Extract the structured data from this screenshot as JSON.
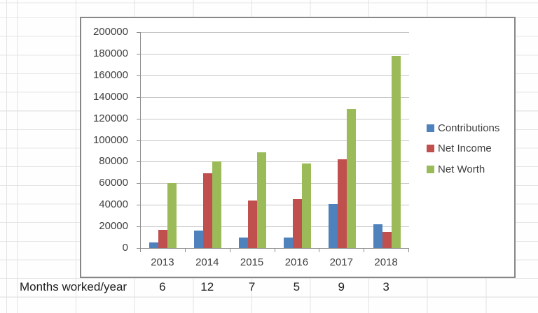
{
  "months_row": {
    "label": "Months worked/year",
    "values": [
      "6",
      "12",
      "7",
      "5",
      "9",
      "3"
    ]
  },
  "chart_data": {
    "type": "bar",
    "title": "",
    "xlabel": "",
    "ylabel": "",
    "categories": [
      "2013",
      "2014",
      "2015",
      "2016",
      "2017",
      "2018"
    ],
    "series": [
      {
        "name": "Contributions",
        "color": "#4F81BD",
        "values": [
          5000,
          16000,
          10000,
          10000,
          41000,
          22000
        ]
      },
      {
        "name": "Net Income",
        "color": "#C0504D",
        "values": [
          17000,
          69000,
          44000,
          45000,
          82500,
          15000
        ]
      },
      {
        "name": "Net Worth",
        "color": "#9BBB59",
        "values": [
          60500,
          80000,
          88500,
          78500,
          129000,
          178000
        ]
      }
    ],
    "ylim": [
      0,
      200000
    ],
    "ytick_step": 20000,
    "grid": true,
    "legend_position": "right-inside"
  },
  "colors": {
    "chart_border": "#878787",
    "axis_line": "#8e8e8e",
    "chart_gridline": "#c6c6c6",
    "sheet_gridline": "#e3e3e3",
    "axis_text": "#3f3f3f",
    "cell_text": "#1f1f1f"
  }
}
